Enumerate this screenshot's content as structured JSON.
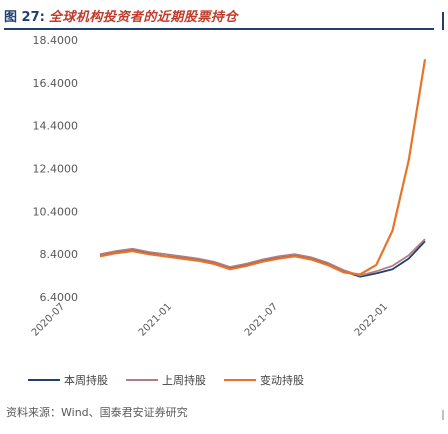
{
  "figure": {
    "number": "图 27:",
    "title": "全球机构投资者的近期股票持仓"
  },
  "source": "资料来源：Wind、国泰君安证券研究",
  "chart_data": {
    "type": "line",
    "title": "",
    "xlabel": "",
    "ylabel": "",
    "ylim": [
      6.4,
      18.4
    ],
    "ytick_labels": [
      "18.4000",
      "16.4000",
      "14.4000",
      "12.4000",
      "10.4000",
      "8.4000",
      "6.4000"
    ],
    "ytick_values": [
      18.4,
      16.4,
      14.4,
      12.4,
      10.4,
      8.4,
      6.4
    ],
    "x": [
      "2020-07",
      "2020-08",
      "2020-09",
      "2020-10",
      "2020-11",
      "2020-12",
      "2021-01",
      "2021-02",
      "2021-03",
      "2021-04",
      "2021-05",
      "2021-06",
      "2021-07",
      "2021-08",
      "2021-09",
      "2021-10",
      "2021-11",
      "2021-12",
      "2022-01",
      "2022-02",
      "2022-03"
    ],
    "xtick_labels": [
      "2020-07",
      "2021-01",
      "2021-07",
      "2022-01"
    ],
    "grid": false,
    "legend_position": "bottom",
    "series": [
      {
        "name": "本周持股",
        "color": "#1f3f73",
        "values": [
          8.35,
          8.5,
          8.6,
          8.45,
          8.3,
          8.25,
          8.15,
          8.0,
          7.75,
          7.9,
          8.1,
          8.25,
          8.35,
          8.2,
          7.95,
          7.6,
          7.35,
          7.5,
          7.7,
          8.2,
          9.0
        ]
      },
      {
        "name": "上周持股",
        "color": "#b07e82",
        "values": [
          8.4,
          8.55,
          8.65,
          8.5,
          8.4,
          8.3,
          8.2,
          8.05,
          7.8,
          7.95,
          8.15,
          8.3,
          8.4,
          8.25,
          8.0,
          7.65,
          7.4,
          7.6,
          7.85,
          8.35,
          9.1
        ]
      },
      {
        "name": "变动持股",
        "color": "#e8732a",
        "values": [
          8.3,
          8.45,
          8.55,
          8.4,
          8.3,
          8.2,
          8.1,
          7.95,
          7.7,
          7.85,
          8.05,
          8.2,
          8.3,
          8.15,
          7.9,
          7.55,
          7.45,
          7.9,
          9.5,
          12.8,
          17.5
        ]
      }
    ]
  }
}
